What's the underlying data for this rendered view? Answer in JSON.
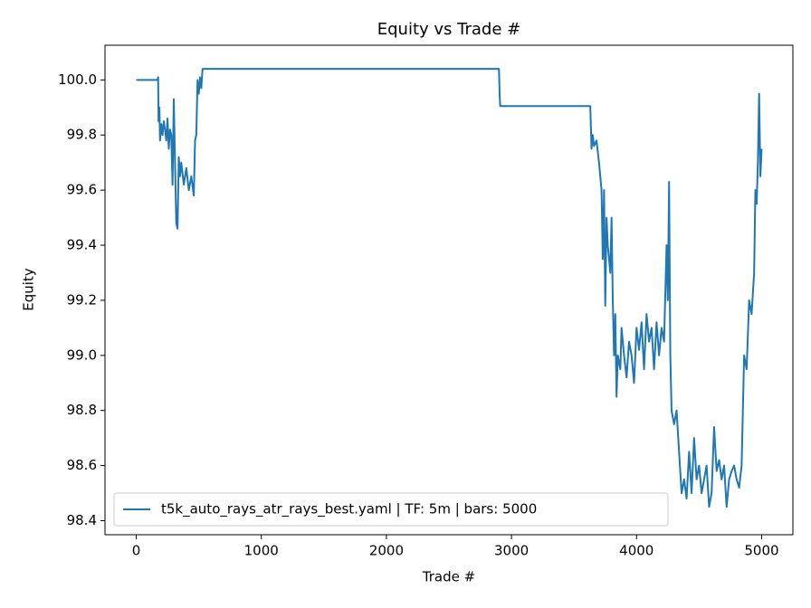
{
  "chart_data": {
    "type": "line",
    "title": "Equity vs Trade #",
    "xlabel": "Trade #",
    "ylabel": "Equity",
    "xlim": [
      -250,
      5250
    ],
    "xticks": [
      0,
      1000,
      2000,
      3000,
      4000,
      5000
    ],
    "ylim": [
      98.349,
      100.126
    ],
    "yticks": [
      98.4,
      98.6,
      98.8,
      {
        "value": 99,
        "label": "99.0"
      },
      99.2,
      99.4,
      99.6,
      99.8,
      {
        "value": 100,
        "label": "100.0"
      }
    ],
    "legend": "lower left",
    "x": [
      0,
      170,
      175,
      178,
      185,
      190,
      200,
      210,
      220,
      230,
      240,
      250,
      260,
      270,
      280,
      290,
      300,
      310,
      320,
      330,
      340,
      350,
      360,
      380,
      400,
      420,
      440,
      460,
      470,
      480,
      490,
      500,
      510,
      520,
      530,
      2900,
      2905,
      2910,
      3630,
      3640,
      3650,
      3660,
      3680,
      3700,
      3720,
      3730,
      3740,
      3750,
      3760,
      3770,
      3780,
      3790,
      3800,
      3810,
      3820,
      3830,
      3840,
      3850,
      3870,
      3880,
      3900,
      3920,
      3940,
      3960,
      3980,
      4000,
      4020,
      4040,
      4060,
      4080,
      4100,
      4120,
      4140,
      4160,
      4180,
      4200,
      4220,
      4240,
      4250,
      4260,
      4270,
      4280,
      4300,
      4320,
      4340,
      4360,
      4380,
      4400,
      4420,
      4440,
      4460,
      4480,
      4500,
      4520,
      4540,
      4560,
      4580,
      4600,
      4620,
      4640,
      4660,
      4680,
      4700,
      4720,
      4740,
      4760,
      4780,
      4800,
      4820,
      4840,
      4850,
      4860,
      4880,
      4900,
      4920,
      4940,
      4950,
      4960,
      4970,
      4980,
      4990,
      5000
    ],
    "series": [
      {
        "name": "t5k_auto_rays_atr_rays_best.yaml | TF: 5m | bars: 5000",
        "color": "#1f77b4",
        "values": [
          100.0,
          100.0,
          100.01,
          99.85,
          99.9,
          99.78,
          99.84,
          99.8,
          99.85,
          99.82,
          99.78,
          99.86,
          99.75,
          99.82,
          99.8,
          99.62,
          99.93,
          99.7,
          99.48,
          99.46,
          99.72,
          99.65,
          99.7,
          99.62,
          99.68,
          99.6,
          99.65,
          99.58,
          99.78,
          99.8,
          100.0,
          99.95,
          100.01,
          99.97,
          100.04,
          100.04,
          99.95,
          99.905,
          99.905,
          99.75,
          99.8,
          99.76,
          99.78,
          99.7,
          99.6,
          99.35,
          99.6,
          99.18,
          99.5,
          99.4,
          99.35,
          99.3,
          99.5,
          99.2,
          99.0,
          99.15,
          98.85,
          99.0,
          98.95,
          99.1,
          99.0,
          98.92,
          99.05,
          99.0,
          98.9,
          99.1,
          99.02,
          99.12,
          98.95,
          99.15,
          99.05,
          99.1,
          98.95,
          99.12,
          99.0,
          99.1,
          99.05,
          99.4,
          99.2,
          99.63,
          99.0,
          98.8,
          98.75,
          98.8,
          98.65,
          98.5,
          98.55,
          98.48,
          98.65,
          98.5,
          98.7,
          98.55,
          98.6,
          98.5,
          98.55,
          98.6,
          98.45,
          98.5,
          98.74,
          98.58,
          98.62,
          98.55,
          98.6,
          98.45,
          98.55,
          98.58,
          98.6,
          98.55,
          98.52,
          98.6,
          98.8,
          99.0,
          98.95,
          99.2,
          99.15,
          99.3,
          99.6,
          99.55,
          99.7,
          99.95,
          99.65,
          99.75
        ]
      }
    ]
  }
}
